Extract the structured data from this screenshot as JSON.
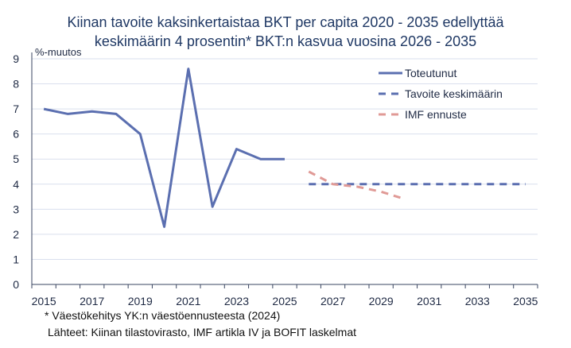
{
  "chart_data": {
    "type": "line",
    "title": [
      "Kiinan tavoite kaksinkertaistaa BKT per capita 2020 - 2035 edellyttää",
      "keskimäärin 4 prosentin* BKT:n kasvua vuosina 2026 - 2035"
    ],
    "ylabel": "%-muutos",
    "ylim": [
      0,
      9
    ],
    "yticks": [
      "0",
      "1",
      "2",
      "3",
      "4",
      "5",
      "6",
      "7",
      "8",
      "9"
    ],
    "categories": [
      2015,
      2016,
      2017,
      2018,
      2019,
      2020,
      2021,
      2022,
      2023,
      2024,
      2025,
      2026,
      2027,
      2028,
      2029,
      2030,
      2031,
      2032,
      2033,
      2034,
      2035
    ],
    "xtick_labels": [
      "2015",
      "2017",
      "2019",
      "2021",
      "2023",
      "2025",
      "2027",
      "2029",
      "2031",
      "2033",
      "2035"
    ],
    "grid": true,
    "legend_position": "top-right",
    "series": [
      {
        "name": "Toteutunut",
        "color": "#5b6fb0",
        "dash": "solid",
        "x": [
          2015,
          2016,
          2017,
          2018,
          2019,
          2020,
          2021,
          2022,
          2023,
          2024,
          2025
        ],
        "values": [
          7.0,
          6.8,
          6.9,
          6.8,
          6.0,
          2.3,
          8.6,
          3.1,
          5.4,
          5.0,
          5.0
        ]
      },
      {
        "name": "Tavoite keskimäärin",
        "color": "#5b6fb0",
        "dash": "dashed",
        "x": [
          2026,
          2027,
          2028,
          2029,
          2030,
          2031,
          2032,
          2033,
          2034,
          2035
        ],
        "values": [
          4,
          4,
          4,
          4,
          4,
          4,
          4,
          4,
          4,
          4
        ]
      },
      {
        "name": "IMF ennuste",
        "color": "#e09a96",
        "dash": "dashed",
        "x": [
          2026,
          2027,
          2028,
          2029,
          2030
        ],
        "values": [
          4.5,
          4.0,
          3.9,
          3.7,
          3.4
        ]
      }
    ]
  },
  "notes": [
    "* Väestökehitys YK:n väestöennusteesta (2024)",
    "Lähteet: Kiinan tilastovirasto, IMF artikla IV ja BOFIT laskelmat"
  ]
}
